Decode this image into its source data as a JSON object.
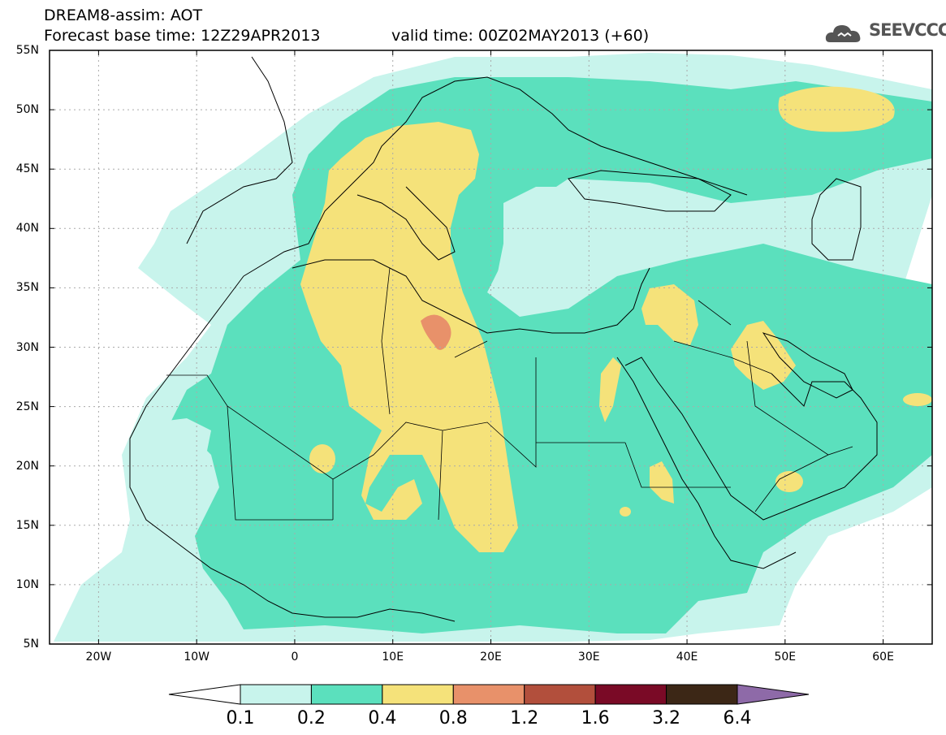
{
  "header": {
    "title": "DREAM8-assim: AOT",
    "base_time": "Forecast base time: 12Z29APR2013",
    "valid_time": "valid time: 00Z02MAY2013 (+60)",
    "logo_text": "SEEVCCC"
  },
  "map": {
    "projection": "lat-lon",
    "lon_range": [
      -25,
      65
    ],
    "lat_range": [
      5,
      55
    ],
    "grid": true,
    "lat_labels": [
      "55N",
      "50N",
      "45N",
      "40N",
      "35N",
      "30N",
      "25N",
      "20N",
      "15N",
      "10N",
      "5N"
    ],
    "lat_values": [
      55,
      50,
      45,
      40,
      35,
      30,
      25,
      20,
      15,
      10,
      5
    ],
    "lon_labels": [
      "20W",
      "10W",
      "0",
      "10E",
      "20E",
      "30E",
      "40E",
      "50E",
      "60E"
    ],
    "lon_values": [
      -20,
      -10,
      0,
      10,
      20,
      30,
      40,
      50,
      60
    ]
  },
  "colorbar": {
    "labels": [
      "0.1",
      "0.2",
      "0.4",
      "0.8",
      "1.2",
      "1.6",
      "3.2",
      "6.4"
    ],
    "colors": [
      "#c8f4ec",
      "#5be0bd",
      "#f5e27a",
      "#e8916a",
      "#b24f3c",
      "#7a0a26",
      "#3c2716",
      "#8e6aa8"
    ]
  }
}
